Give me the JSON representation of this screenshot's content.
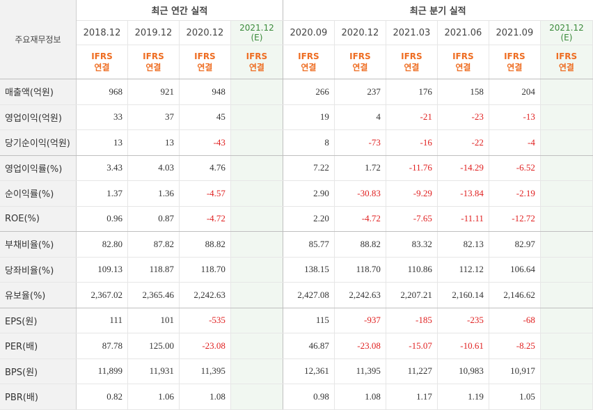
{
  "header": {
    "row_title": "주요재무정보",
    "annual_title": "최근 연간 실적",
    "quarterly_title": "최근 분기 실적",
    "annual_periods": [
      "2018.12",
      "2019.12",
      "2020.12"
    ],
    "annual_estimate": {
      "period": "2021.12",
      "mark": "(E)"
    },
    "quarterly_periods": [
      "2020.09",
      "2020.12",
      "2021.03",
      "2021.06",
      "2021.09"
    ],
    "quarterly_estimate": {
      "period": "2021.12",
      "mark": "(E)"
    },
    "ifrs_top": "IFRS",
    "ifrs_bottom": "연결"
  },
  "rows": [
    {
      "label": "매출액(억원)",
      "annual": [
        "968",
        "921",
        "948",
        ""
      ],
      "quarterly": [
        "266",
        "237",
        "176",
        "158",
        "204",
        ""
      ]
    },
    {
      "label": "영업이익(억원)",
      "annual": [
        "33",
        "37",
        "45",
        ""
      ],
      "quarterly": [
        "19",
        "4",
        "-21",
        "-23",
        "-13",
        ""
      ]
    },
    {
      "label": "당기순이익(억원)",
      "annual": [
        "13",
        "13",
        "-43",
        ""
      ],
      "quarterly": [
        "8",
        "-73",
        "-16",
        "-22",
        "-4",
        ""
      ]
    },
    {
      "label": "영업이익률(%)",
      "annual": [
        "3.43",
        "4.03",
        "4.76",
        ""
      ],
      "quarterly": [
        "7.22",
        "1.72",
        "-11.76",
        "-14.29",
        "-6.52",
        ""
      ]
    },
    {
      "label": "순이익률(%)",
      "annual": [
        "1.37",
        "1.36",
        "-4.57",
        ""
      ],
      "quarterly": [
        "2.90",
        "-30.83",
        "-9.29",
        "-13.84",
        "-2.19",
        ""
      ]
    },
    {
      "label": "ROE(%)",
      "annual": [
        "0.96",
        "0.87",
        "-4.72",
        ""
      ],
      "quarterly": [
        "2.20",
        "-4.72",
        "-7.65",
        "-11.11",
        "-12.72",
        ""
      ]
    },
    {
      "label": "부채비율(%)",
      "annual": [
        "82.80",
        "87.82",
        "88.82",
        ""
      ],
      "quarterly": [
        "85.77",
        "88.82",
        "83.32",
        "82.13",
        "82.97",
        ""
      ]
    },
    {
      "label": "당좌비율(%)",
      "annual": [
        "109.13",
        "118.87",
        "118.70",
        ""
      ],
      "quarterly": [
        "138.15",
        "118.70",
        "110.86",
        "112.12",
        "106.64",
        ""
      ]
    },
    {
      "label": "유보율(%)",
      "annual": [
        "2,367.02",
        "2,365.46",
        "2,242.63",
        ""
      ],
      "quarterly": [
        "2,427.08",
        "2,242.63",
        "2,207.21",
        "2,160.14",
        "2,146.62",
        ""
      ]
    },
    {
      "label": "EPS(원)",
      "annual": [
        "111",
        "101",
        "-535",
        ""
      ],
      "quarterly": [
        "115",
        "-937",
        "-185",
        "-235",
        "-68",
        ""
      ]
    },
    {
      "label": "PER(배)",
      "annual": [
        "87.78",
        "125.00",
        "-23.08",
        ""
      ],
      "quarterly": [
        "46.87",
        "-23.08",
        "-15.07",
        "-10.61",
        "-8.25",
        ""
      ]
    },
    {
      "label": "BPS(원)",
      "annual": [
        "11,899",
        "11,931",
        "11,395",
        ""
      ],
      "quarterly": [
        "12,361",
        "11,395",
        "11,227",
        "10,983",
        "10,917",
        ""
      ]
    },
    {
      "label": "PBR(배)",
      "annual": [
        "0.82",
        "1.06",
        "1.08",
        ""
      ],
      "quarterly": [
        "0.98",
        "1.08",
        "1.17",
        "1.19",
        "1.05",
        ""
      ]
    }
  ],
  "colors": {
    "negative": "#e02020",
    "ifrs": "#ee6d22",
    "estimate": "#3a8a3a",
    "estimate_bg": "#f1f7f1"
  }
}
